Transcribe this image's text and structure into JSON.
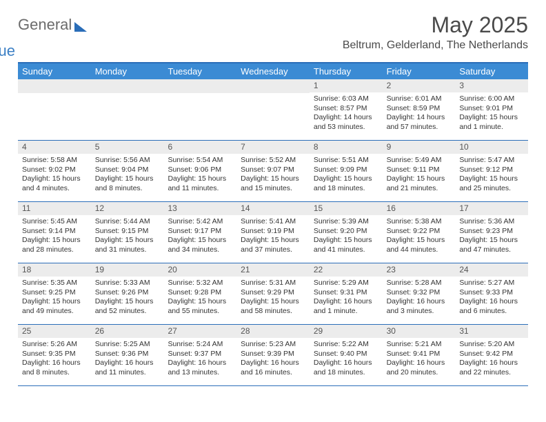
{
  "brand": {
    "general": "General",
    "blue": "Blue"
  },
  "title": "May 2025",
  "location": "Beltrum, Gelderland, The Netherlands",
  "colors": {
    "header_bg": "#3b8bd4",
    "border": "#2a6db8",
    "daynum_bg": "#ececec",
    "text": "#333333",
    "title_text": "#4a4a4a"
  },
  "dow": [
    "Sunday",
    "Monday",
    "Tuesday",
    "Wednesday",
    "Thursday",
    "Friday",
    "Saturday"
  ],
  "weeks": [
    [
      {
        "n": "",
        "sr": "",
        "ss": "",
        "dl": ""
      },
      {
        "n": "",
        "sr": "",
        "ss": "",
        "dl": ""
      },
      {
        "n": "",
        "sr": "",
        "ss": "",
        "dl": ""
      },
      {
        "n": "",
        "sr": "",
        "ss": "",
        "dl": ""
      },
      {
        "n": "1",
        "sr": "Sunrise: 6:03 AM",
        "ss": "Sunset: 8:57 PM",
        "dl": "Daylight: 14 hours and 53 minutes."
      },
      {
        "n": "2",
        "sr": "Sunrise: 6:01 AM",
        "ss": "Sunset: 8:59 PM",
        "dl": "Daylight: 14 hours and 57 minutes."
      },
      {
        "n": "3",
        "sr": "Sunrise: 6:00 AM",
        "ss": "Sunset: 9:01 PM",
        "dl": "Daylight: 15 hours and 1 minute."
      }
    ],
    [
      {
        "n": "4",
        "sr": "Sunrise: 5:58 AM",
        "ss": "Sunset: 9:02 PM",
        "dl": "Daylight: 15 hours and 4 minutes."
      },
      {
        "n": "5",
        "sr": "Sunrise: 5:56 AM",
        "ss": "Sunset: 9:04 PM",
        "dl": "Daylight: 15 hours and 8 minutes."
      },
      {
        "n": "6",
        "sr": "Sunrise: 5:54 AM",
        "ss": "Sunset: 9:06 PM",
        "dl": "Daylight: 15 hours and 11 minutes."
      },
      {
        "n": "7",
        "sr": "Sunrise: 5:52 AM",
        "ss": "Sunset: 9:07 PM",
        "dl": "Daylight: 15 hours and 15 minutes."
      },
      {
        "n": "8",
        "sr": "Sunrise: 5:51 AM",
        "ss": "Sunset: 9:09 PM",
        "dl": "Daylight: 15 hours and 18 minutes."
      },
      {
        "n": "9",
        "sr": "Sunrise: 5:49 AM",
        "ss": "Sunset: 9:11 PM",
        "dl": "Daylight: 15 hours and 21 minutes."
      },
      {
        "n": "10",
        "sr": "Sunrise: 5:47 AM",
        "ss": "Sunset: 9:12 PM",
        "dl": "Daylight: 15 hours and 25 minutes."
      }
    ],
    [
      {
        "n": "11",
        "sr": "Sunrise: 5:45 AM",
        "ss": "Sunset: 9:14 PM",
        "dl": "Daylight: 15 hours and 28 minutes."
      },
      {
        "n": "12",
        "sr": "Sunrise: 5:44 AM",
        "ss": "Sunset: 9:15 PM",
        "dl": "Daylight: 15 hours and 31 minutes."
      },
      {
        "n": "13",
        "sr": "Sunrise: 5:42 AM",
        "ss": "Sunset: 9:17 PM",
        "dl": "Daylight: 15 hours and 34 minutes."
      },
      {
        "n": "14",
        "sr": "Sunrise: 5:41 AM",
        "ss": "Sunset: 9:19 PM",
        "dl": "Daylight: 15 hours and 37 minutes."
      },
      {
        "n": "15",
        "sr": "Sunrise: 5:39 AM",
        "ss": "Sunset: 9:20 PM",
        "dl": "Daylight: 15 hours and 41 minutes."
      },
      {
        "n": "16",
        "sr": "Sunrise: 5:38 AM",
        "ss": "Sunset: 9:22 PM",
        "dl": "Daylight: 15 hours and 44 minutes."
      },
      {
        "n": "17",
        "sr": "Sunrise: 5:36 AM",
        "ss": "Sunset: 9:23 PM",
        "dl": "Daylight: 15 hours and 47 minutes."
      }
    ],
    [
      {
        "n": "18",
        "sr": "Sunrise: 5:35 AM",
        "ss": "Sunset: 9:25 PM",
        "dl": "Daylight: 15 hours and 49 minutes."
      },
      {
        "n": "19",
        "sr": "Sunrise: 5:33 AM",
        "ss": "Sunset: 9:26 PM",
        "dl": "Daylight: 15 hours and 52 minutes."
      },
      {
        "n": "20",
        "sr": "Sunrise: 5:32 AM",
        "ss": "Sunset: 9:28 PM",
        "dl": "Daylight: 15 hours and 55 minutes."
      },
      {
        "n": "21",
        "sr": "Sunrise: 5:31 AM",
        "ss": "Sunset: 9:29 PM",
        "dl": "Daylight: 15 hours and 58 minutes."
      },
      {
        "n": "22",
        "sr": "Sunrise: 5:29 AM",
        "ss": "Sunset: 9:31 PM",
        "dl": "Daylight: 16 hours and 1 minute."
      },
      {
        "n": "23",
        "sr": "Sunrise: 5:28 AM",
        "ss": "Sunset: 9:32 PM",
        "dl": "Daylight: 16 hours and 3 minutes."
      },
      {
        "n": "24",
        "sr": "Sunrise: 5:27 AM",
        "ss": "Sunset: 9:33 PM",
        "dl": "Daylight: 16 hours and 6 minutes."
      }
    ],
    [
      {
        "n": "25",
        "sr": "Sunrise: 5:26 AM",
        "ss": "Sunset: 9:35 PM",
        "dl": "Daylight: 16 hours and 8 minutes."
      },
      {
        "n": "26",
        "sr": "Sunrise: 5:25 AM",
        "ss": "Sunset: 9:36 PM",
        "dl": "Daylight: 16 hours and 11 minutes."
      },
      {
        "n": "27",
        "sr": "Sunrise: 5:24 AM",
        "ss": "Sunset: 9:37 PM",
        "dl": "Daylight: 16 hours and 13 minutes."
      },
      {
        "n": "28",
        "sr": "Sunrise: 5:23 AM",
        "ss": "Sunset: 9:39 PM",
        "dl": "Daylight: 16 hours and 16 minutes."
      },
      {
        "n": "29",
        "sr": "Sunrise: 5:22 AM",
        "ss": "Sunset: 9:40 PM",
        "dl": "Daylight: 16 hours and 18 minutes."
      },
      {
        "n": "30",
        "sr": "Sunrise: 5:21 AM",
        "ss": "Sunset: 9:41 PM",
        "dl": "Daylight: 16 hours and 20 minutes."
      },
      {
        "n": "31",
        "sr": "Sunrise: 5:20 AM",
        "ss": "Sunset: 9:42 PM",
        "dl": "Daylight: 16 hours and 22 minutes."
      }
    ]
  ]
}
